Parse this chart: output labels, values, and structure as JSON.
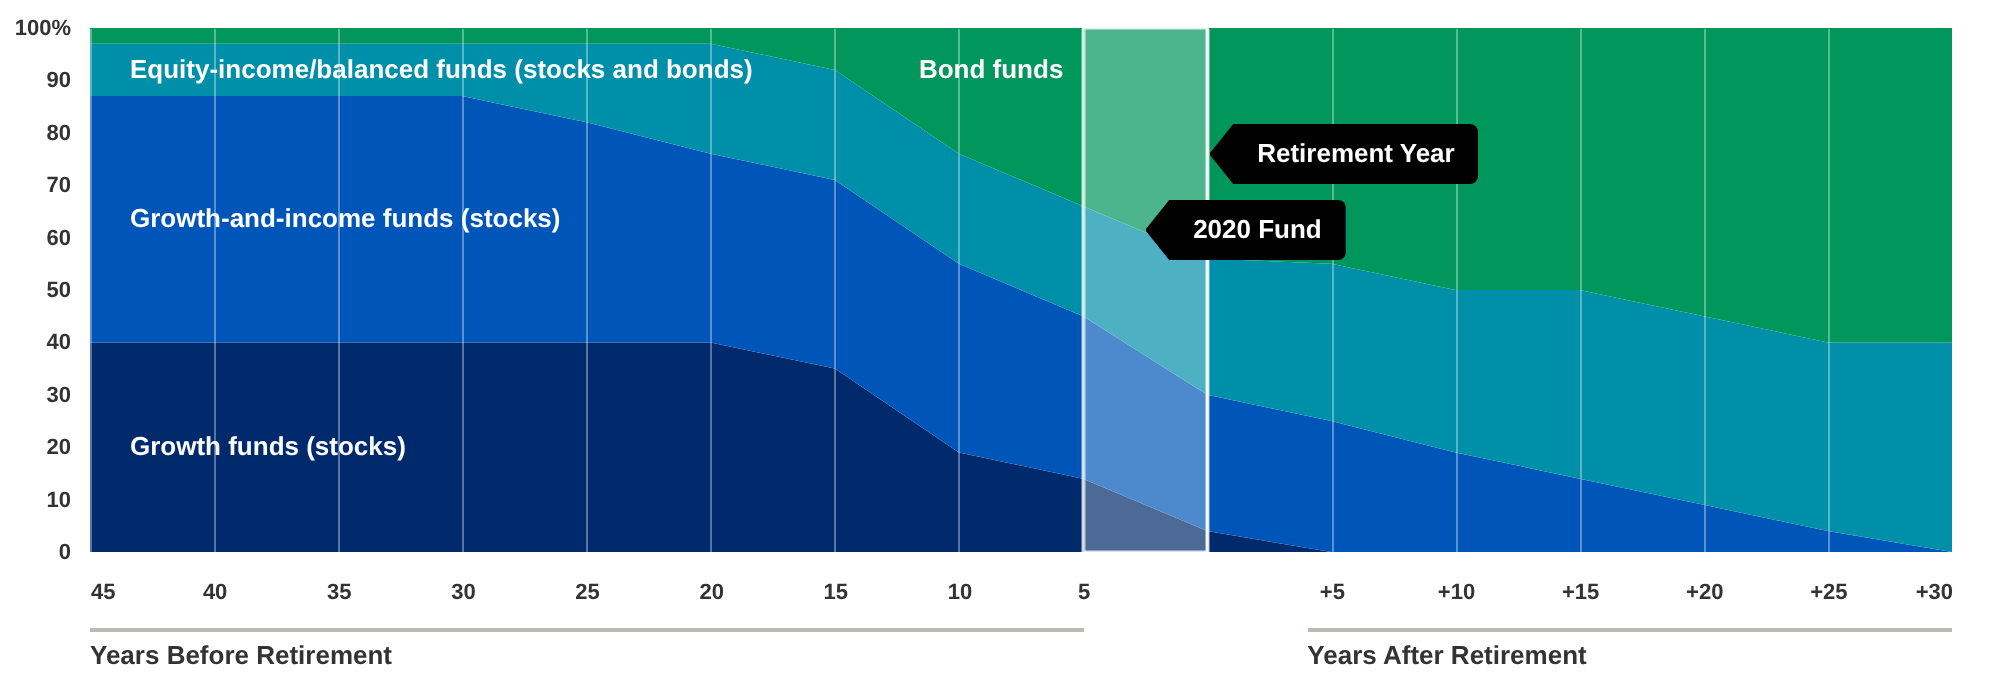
{
  "chart_data": {
    "type": "area",
    "stacked": true,
    "xlabel": "Years Before Retirement",
    "annotations": [
      "Years After Retirement"
    ],
    "x": [
      -45,
      -40,
      -35,
      -30,
      -25,
      -20,
      -15,
      -10,
      -5,
      0,
      5,
      10,
      15,
      20,
      25,
      30
    ],
    "series": [
      {
        "name": "Growth funds (stocks)",
        "color": "#002a6b",
        "values": [
          40,
          40,
          40,
          40,
          40,
          40,
          35,
          19,
          14,
          4,
          0,
          0,
          0,
          0,
          0,
          0
        ]
      },
      {
        "name": "Growth-and-income funds (stocks)",
        "color": "#0056b8",
        "values": [
          47,
          47,
          47,
          47,
          42,
          36,
          36,
          36,
          31,
          26,
          25,
          19,
          14,
          9,
          4,
          0
        ]
      },
      {
        "name": "Equity-income/balanced funds (stocks and bonds)",
        "color": "#008fa9",
        "values": [
          10,
          10,
          10,
          10,
          15,
          21,
          21,
          21,
          21,
          26,
          30,
          31,
          36,
          36,
          36,
          40
        ]
      },
      {
        "name": "Bond funds",
        "color": "#00965c",
        "values": [
          3,
          3,
          3,
          3,
          3,
          3,
          8,
          24,
          34,
          44,
          45,
          50,
          50,
          55,
          60,
          60
        ]
      }
    ],
    "xlim": [
      -45,
      30
    ],
    "xticks": [
      {
        "value": -45,
        "label": "45"
      },
      {
        "value": -40,
        "label": "40"
      },
      {
        "value": -35,
        "label": "35"
      },
      {
        "value": -30,
        "label": "30"
      },
      {
        "value": -25,
        "label": "25"
      },
      {
        "value": -20,
        "label": "20"
      },
      {
        "value": -15,
        "label": "15"
      },
      {
        "value": -10,
        "label": "10"
      },
      {
        "value": -5,
        "label": "5"
      },
      {
        "value": 0,
        "label": null
      },
      {
        "value": 5,
        "label": "+5"
      },
      {
        "value": 10,
        "label": "+10"
      },
      {
        "value": 15,
        "label": "+15"
      },
      {
        "value": 20,
        "label": "+20"
      },
      {
        "value": 25,
        "label": "+25"
      },
      {
        "value": 30,
        "label": "+30"
      }
    ],
    "ylim": [
      0,
      100
    ],
    "yticks": [
      0,
      10,
      20,
      30,
      40,
      50,
      60,
      70,
      80,
      90,
      {
        "value": 100,
        "label": "100%"
      }
    ],
    "grid": "x",
    "bands": [
      {
        "axis": "x",
        "from": -5,
        "to": 0,
        "label": "2020 Fund",
        "color": "#ffffff"
      }
    ],
    "ref_lines": [
      {
        "axis": "x",
        "value": 0,
        "label": "Retirement Year",
        "color": "#ffffff"
      }
    ]
  }
}
